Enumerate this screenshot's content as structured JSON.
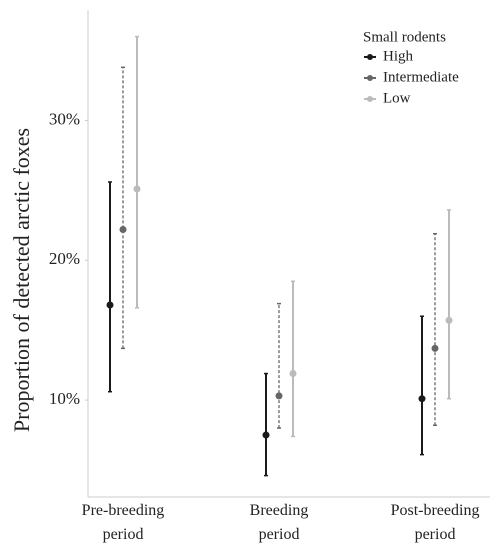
{
  "chart_data": {
    "type": "errorbar",
    "y_label": "Proportion of detected arctic foxes",
    "categories": [
      "Pre-breeding period",
      "Breeding period",
      "Post-breeding period"
    ],
    "legend_title": "Small rodents",
    "legend_position": "upper right",
    "series": [
      {
        "name": "High",
        "color": "#1a1a1a",
        "dashed": false,
        "values": [
          16.8,
          7.5,
          10.1
        ],
        "lower": [
          10.6,
          4.6,
          6.1
        ],
        "upper": [
          25.6,
          11.9,
          16.0
        ]
      },
      {
        "name": "Intermediate",
        "color": "#666666",
        "dashed": true,
        "values": [
          22.2,
          10.3,
          13.7
        ],
        "lower": [
          13.7,
          8.0,
          8.2
        ],
        "upper": [
          33.8,
          16.9,
          21.9
        ]
      },
      {
        "name": "Low",
        "color": "#bbbbbb",
        "dashed": false,
        "values": [
          25.1,
          11.9,
          15.7
        ],
        "lower": [
          16.6,
          7.4,
          10.1
        ],
        "upper": [
          36.0,
          18.5,
          23.6
        ]
      }
    ],
    "ylim": [
      3.07,
      37.9
    ],
    "yticks": [
      {
        "value": 10,
        "label": "10%"
      },
      {
        "value": 20,
        "label": "20%"
      },
      {
        "value": 30,
        "label": "30%"
      }
    ]
  }
}
